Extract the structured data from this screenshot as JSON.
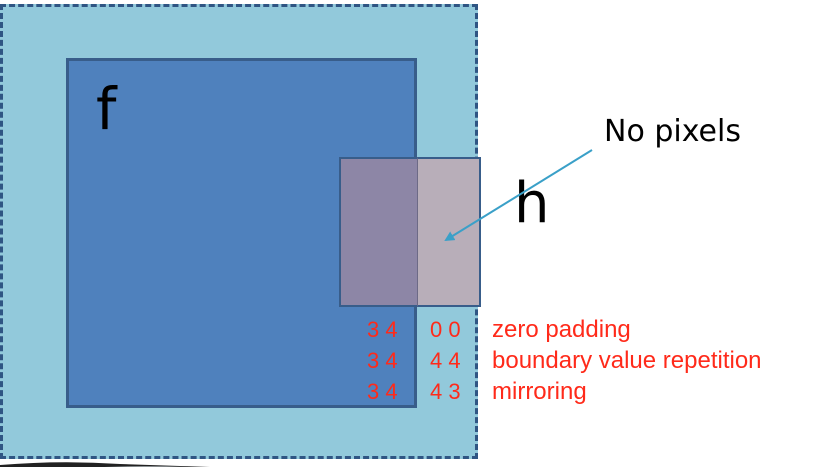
{
  "labels": {
    "image": "f",
    "kernel": "h",
    "no_pixels": "No pixels"
  },
  "rows": [
    {
      "inside": "3 4",
      "outside": "0 0",
      "method": "zero padding"
    },
    {
      "inside": "3 4",
      "outside": "4 4",
      "method": "boundary value repetition"
    },
    {
      "inside": "3 4",
      "outside": "4 3",
      "method": "mirroring"
    }
  ],
  "colors": {
    "padding_region": "#92c9db",
    "image_region": "#4f81bd",
    "kernel_inside": "#8d86a6",
    "kernel_outside": "#b8aeb9",
    "annotation_red": "#ff2a1a",
    "arrow": "#3aa0c8"
  }
}
